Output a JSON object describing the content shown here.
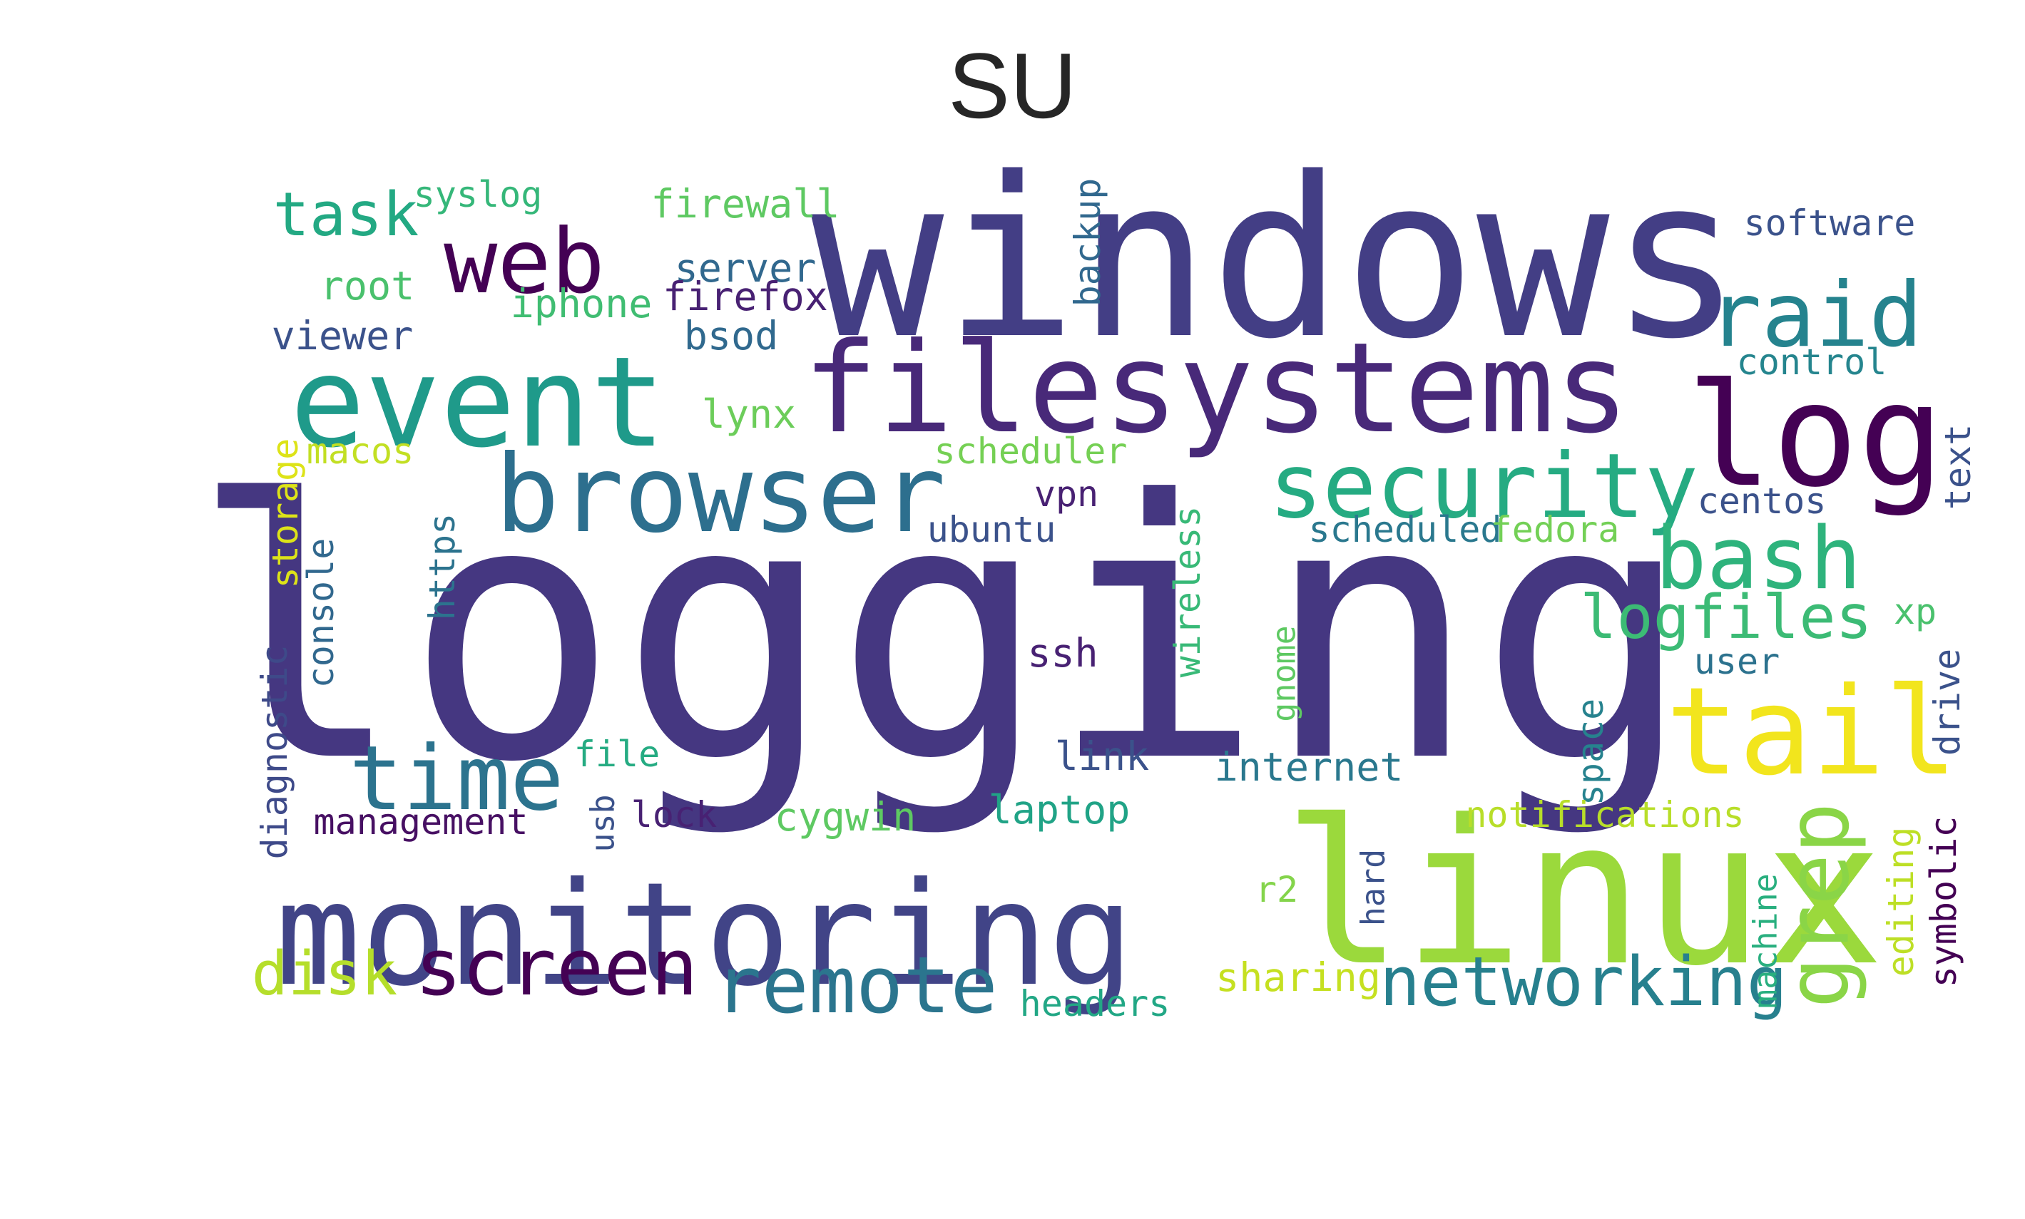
{
  "title": "SU",
  "words": [
    {
      "text": "logging",
      "color": "#453781"
    },
    {
      "text": "windows",
      "color": "#433e85"
    },
    {
      "text": "linux",
      "color": "#9bd93c"
    },
    {
      "text": "monitoring",
      "color": "#414487"
    },
    {
      "text": "filesystems",
      "color": "#482979"
    },
    {
      "text": "event",
      "color": "#1f9a8a"
    },
    {
      "text": "browser",
      "color": "#2d6f8e"
    },
    {
      "text": "log",
      "color": "#440154"
    },
    {
      "text": "tail",
      "color": "#f2e51d"
    },
    {
      "text": "security",
      "color": "#25ab82"
    },
    {
      "text": "raid",
      "color": "#25838e"
    },
    {
      "text": "web",
      "color": "#440154"
    },
    {
      "text": "time",
      "color": "#2c738e"
    },
    {
      "text": "screen",
      "color": "#440154"
    },
    {
      "text": "remote",
      "color": "#2b758e"
    },
    {
      "text": "bash",
      "color": "#2eb37c"
    },
    {
      "text": "grep",
      "color": "#8ad547"
    },
    {
      "text": "networking",
      "color": "#27808e"
    },
    {
      "text": "logfiles",
      "color": "#3cbb75"
    },
    {
      "text": "task",
      "color": "#23a983"
    },
    {
      "text": "disk",
      "color": "#b5de2b"
    },
    {
      "text": "software",
      "color": "#3b528b"
    },
    {
      "text": "control",
      "color": "#25858e"
    },
    {
      "text": "firewall",
      "color": "#5ec962"
    },
    {
      "text": "syslog",
      "color": "#35b779"
    },
    {
      "text": "server",
      "color": "#31688e"
    },
    {
      "text": "iphone",
      "color": "#40bd72"
    },
    {
      "text": "firefox",
      "color": "#482173"
    },
    {
      "text": "backup",
      "color": "#31688e"
    },
    {
      "text": "root",
      "color": "#4ac16d"
    },
    {
      "text": "viewer",
      "color": "#3b528b"
    },
    {
      "text": "bsod",
      "color": "#30698e"
    },
    {
      "text": "lynx",
      "color": "#6ccd5a"
    },
    {
      "text": "macos",
      "color": "#c2df23"
    },
    {
      "text": "scheduler",
      "color": "#75d054"
    },
    {
      "text": "vpn",
      "color": "#482173"
    },
    {
      "text": "ubuntu",
      "color": "#3b528b"
    },
    {
      "text": "wireless",
      "color": "#38b977"
    },
    {
      "text": "scheduled",
      "color": "#2a788e"
    },
    {
      "text": "fedora",
      "color": "#73d056"
    },
    {
      "text": "centos",
      "color": "#3b528b"
    },
    {
      "text": "text",
      "color": "#3b528b"
    },
    {
      "text": "https",
      "color": "#2c738e"
    },
    {
      "text": "storage",
      "color": "#dde318"
    },
    {
      "text": "console",
      "color": "#31688e"
    },
    {
      "text": "diagnostic",
      "color": "#3e4a89"
    },
    {
      "text": "ssh",
      "color": "#482173"
    },
    {
      "text": "gnome",
      "color": "#5ec962"
    },
    {
      "text": "xp",
      "color": "#4ac16d"
    },
    {
      "text": "user",
      "color": "#2c728e"
    },
    {
      "text": "drive",
      "color": "#3b528b"
    },
    {
      "text": "space",
      "color": "#26828e"
    },
    {
      "text": "file",
      "color": "#25ab82"
    },
    {
      "text": "link",
      "color": "#3b528b"
    },
    {
      "text": "internet",
      "color": "#2a788e"
    },
    {
      "text": "management",
      "color": "#471063"
    },
    {
      "text": "usb",
      "color": "#3b528b"
    },
    {
      "text": "lock",
      "color": "#482173"
    },
    {
      "text": "cygwin",
      "color": "#5ec962"
    },
    {
      "text": "laptop",
      "color": "#20a386"
    },
    {
      "text": "notifications",
      "color": "#b8de29"
    },
    {
      "text": "r2",
      "color": "#84d44b"
    },
    {
      "text": "hard",
      "color": "#3b528b"
    },
    {
      "text": "machine",
      "color": "#29af7f"
    },
    {
      "text": "editing",
      "color": "#bddf26"
    },
    {
      "text": "symbolic",
      "color": "#440154"
    },
    {
      "text": "sharing",
      "color": "#c5e021"
    },
    {
      "text": "headers",
      "color": "#22a785"
    }
  ]
}
